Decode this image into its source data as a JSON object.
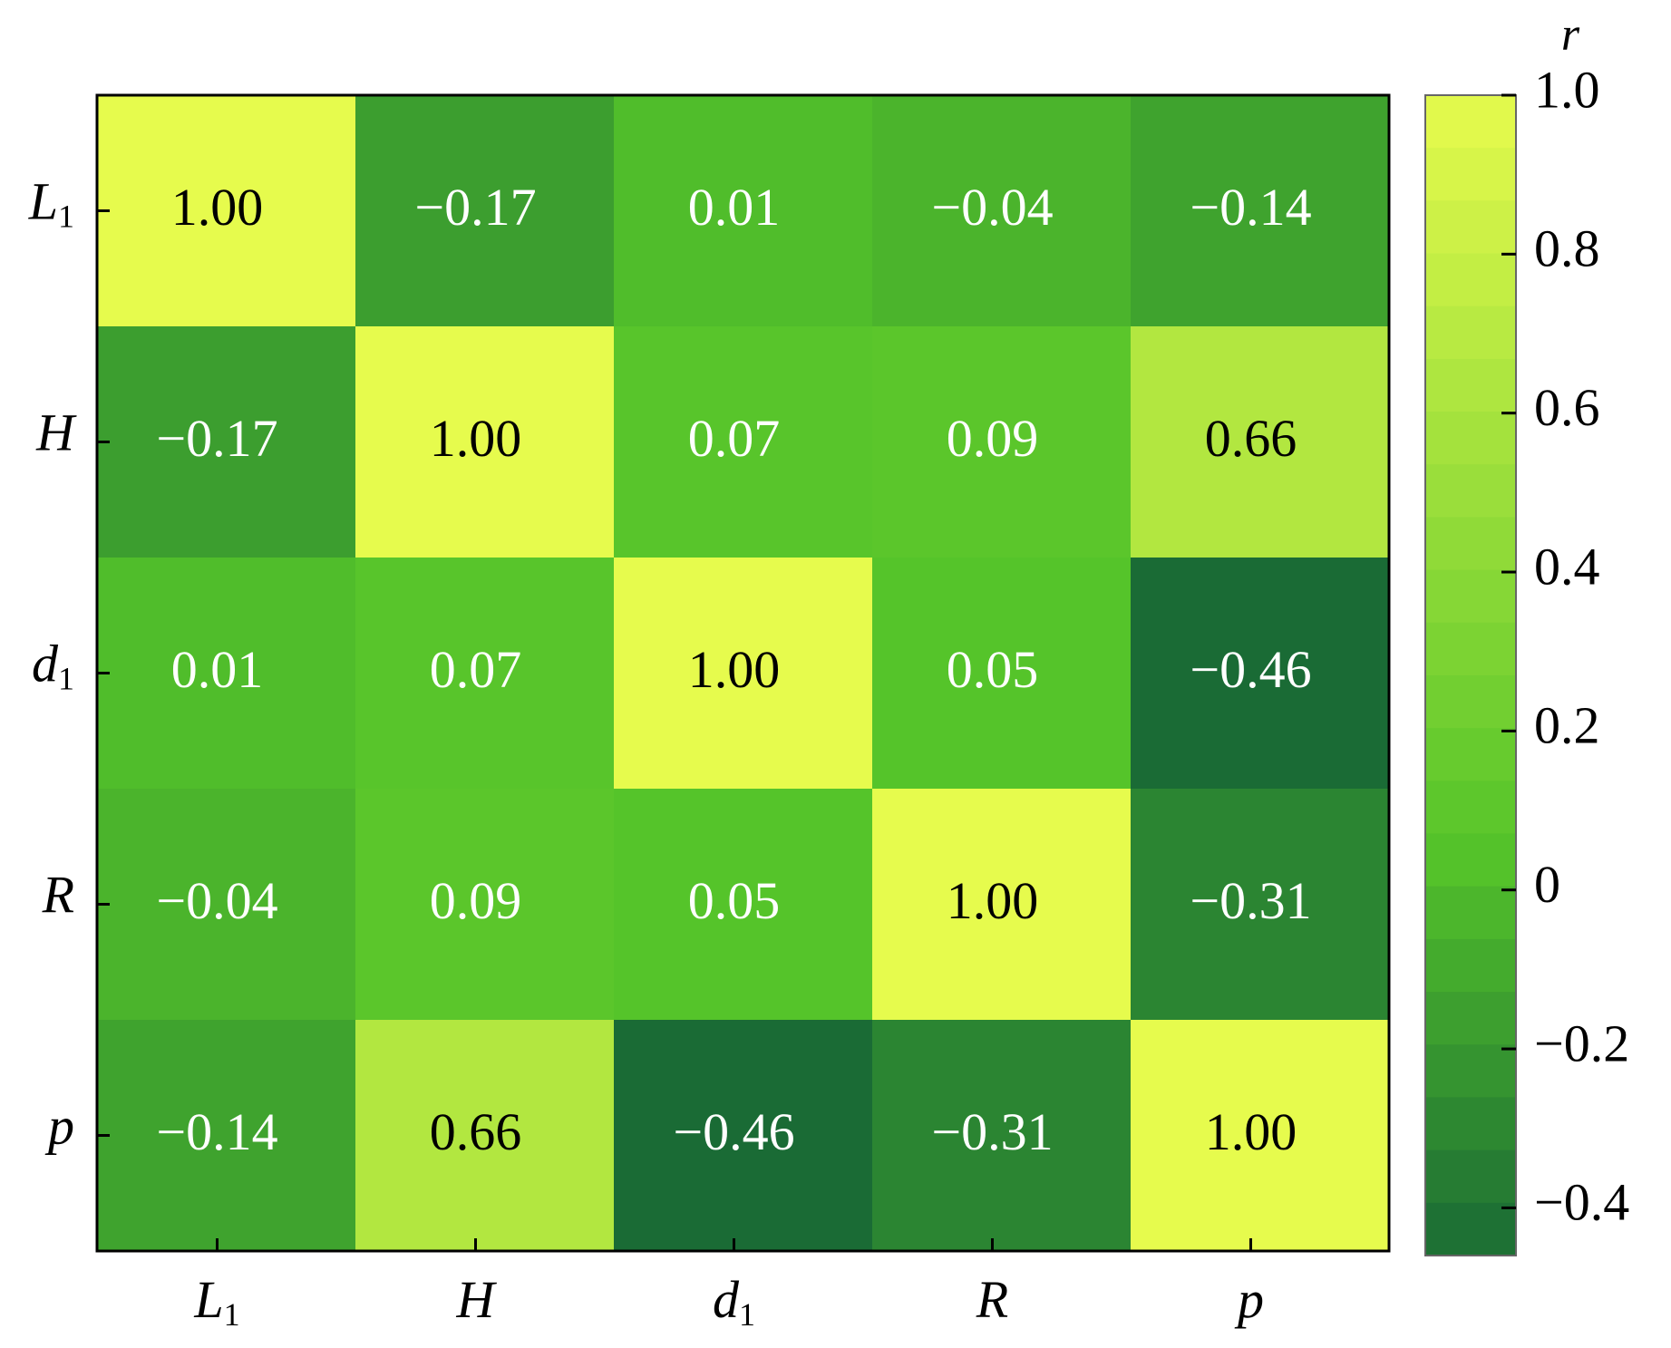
{
  "chart_data": {
    "type": "heatmap",
    "variables": [
      {
        "main": "L",
        "sub": "1"
      },
      {
        "main": "H",
        "sub": ""
      },
      {
        "main": "d",
        "sub": "1"
      },
      {
        "main": "R",
        "sub": ""
      },
      {
        "main": "p",
        "sub": ""
      }
    ],
    "matrix": [
      [
        1.0,
        -0.17,
        0.01,
        -0.04,
        -0.14
      ],
      [
        -0.17,
        1.0,
        0.07,
        0.09,
        0.66
      ],
      [
        0.01,
        0.07,
        1.0,
        0.05,
        -0.46
      ],
      [
        -0.04,
        0.09,
        0.05,
        1.0,
        -0.31
      ],
      [
        -0.14,
        0.66,
        -0.46,
        -0.31,
        1.0
      ]
    ],
    "cell_labels": [
      [
        "1.00",
        "−0.17",
        "0.01",
        "−0.04",
        "−0.14"
      ],
      [
        "−0.17",
        "1.00",
        "0.07",
        "0.09",
        "0.66"
      ],
      [
        "0.01",
        "0.07",
        "1.00",
        "0.05",
        "−0.46"
      ],
      [
        "−0.04",
        "0.09",
        "0.05",
        "1.00",
        "−0.31"
      ],
      [
        "−0.14",
        "0.66",
        "−0.46",
        "−0.31",
        "1.00"
      ]
    ],
    "colorbar": {
      "title": "r",
      "range": [
        -0.46,
        1.0
      ],
      "ticks": [
        1.0,
        0.8,
        0.6,
        0.4,
        0.2,
        0,
        -0.2,
        -0.4
      ],
      "tick_labels": [
        "1.0",
        "0.8",
        "0.6",
        "0.4",
        "0.2",
        "0",
        "−0.2",
        "−0.4"
      ]
    },
    "colors": {
      "low": "#1a6b35",
      "mid": "#55c42a",
      "high": "#e6fb4d",
      "text_light": "#ffffff",
      "text_dark": "#000000"
    }
  }
}
